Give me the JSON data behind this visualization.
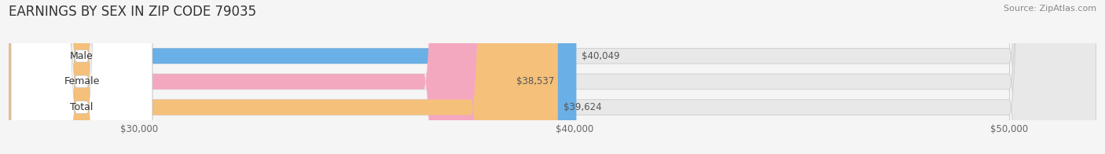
{
  "title": "EARNINGS BY SEX IN ZIP CODE 79035",
  "source": "Source: ZipAtlas.com",
  "categories": [
    "Male",
    "Female",
    "Total"
  ],
  "values": [
    40049,
    38537,
    39624
  ],
  "bar_colors": [
    "#6aafe6",
    "#f4a8c0",
    "#f5c07a"
  ],
  "bar_labels": [
    "$40,049",
    "$38,537",
    "$39,624"
  ],
  "xlim": [
    27000,
    52000
  ],
  "xticks": [
    30000,
    40000,
    50000
  ],
  "xtick_labels": [
    "$30,000",
    "$40,000",
    "$50,000"
  ],
  "bg_color": "#f5f5f5",
  "bar_bg_color": "#e8e8e8",
  "title_fontsize": 12,
  "source_fontsize": 8,
  "tick_fontsize": 8.5,
  "bar_label_fontsize": 8.5,
  "category_fontsize": 9
}
